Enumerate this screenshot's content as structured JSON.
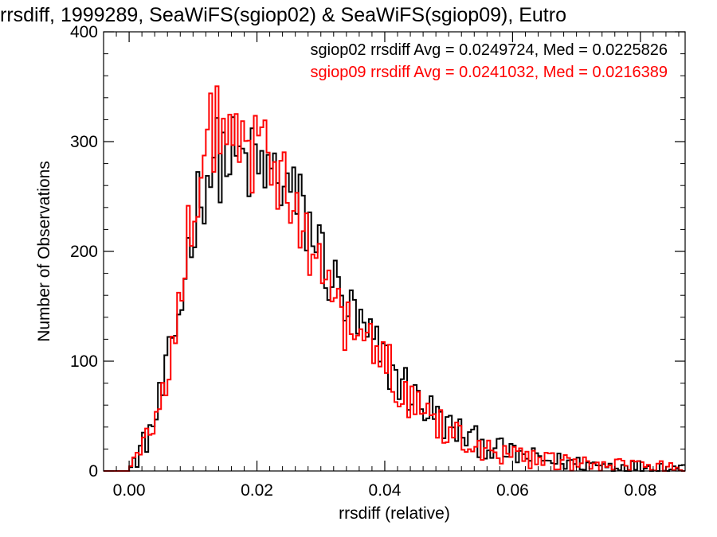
{
  "chart_data": {
    "type": "histogram",
    "title": "rrsdiff, 1999289, SeaWiFS(sgiop02) & SeaWiFS(sgiop09), Eutro",
    "xlabel": "rrsdiff (relative)",
    "ylabel": "Number of Observations",
    "xlim": [
      -0.004,
      0.087
    ],
    "ylim": [
      0,
      400
    ],
    "x_ticks": [
      0.0,
      0.02,
      0.04,
      0.06,
      0.08
    ],
    "x_tick_labels": [
      "0.00",
      "0.02",
      "0.04",
      "0.06",
      "0.08"
    ],
    "y_ticks": [
      0,
      100,
      200,
      300,
      400
    ],
    "y_tick_labels": [
      "0",
      "100",
      "200",
      "300",
      "400"
    ],
    "bin_width": 0.0005,
    "series": [
      {
        "name": "sgiop02",
        "color": "#000000",
        "legend": "sgiop02 rrsdiff Avg = 0.0249724, Med = 0.0225826",
        "profile_x": [
          -0.004,
          0.0,
          0.001,
          0.002,
          0.004,
          0.006,
          0.008,
          0.01,
          0.012,
          0.014,
          0.016,
          0.018,
          0.02,
          0.022,
          0.024,
          0.026,
          0.028,
          0.03,
          0.032,
          0.034,
          0.036,
          0.038,
          0.04,
          0.042,
          0.045,
          0.05,
          0.055,
          0.06,
          0.065,
          0.07,
          0.075,
          0.08,
          0.087
        ],
        "profile_y": [
          0,
          0,
          10,
          20,
          45,
          90,
          150,
          230,
          270,
          285,
          285,
          280,
          275,
          270,
          265,
          245,
          225,
          200,
          170,
          150,
          130,
          115,
          100,
          85,
          65,
          40,
          25,
          15,
          10,
          7,
          5,
          4,
          3
        ]
      },
      {
        "name": "sgiop09",
        "color": "#ff0000",
        "legend": "sgiop09 rrsdiff Avg = 0.0241032, Med = 0.0216389",
        "profile_x": [
          -0.004,
          0.0,
          0.001,
          0.002,
          0.004,
          0.006,
          0.008,
          0.01,
          0.012,
          0.014,
          0.016,
          0.018,
          0.02,
          0.022,
          0.024,
          0.026,
          0.028,
          0.03,
          0.032,
          0.034,
          0.036,
          0.038,
          0.04,
          0.042,
          0.045,
          0.05,
          0.055,
          0.06,
          0.065,
          0.07,
          0.075,
          0.08,
          0.087
        ],
        "profile_y": [
          0,
          0,
          10,
          22,
          48,
          95,
          160,
          245,
          300,
          310,
          300,
          290,
          285,
          280,
          265,
          240,
          215,
          185,
          155,
          135,
          120,
          110,
          100,
          82,
          60,
          38,
          22,
          13,
          9,
          6,
          5,
          4,
          3
        ]
      }
    ]
  }
}
